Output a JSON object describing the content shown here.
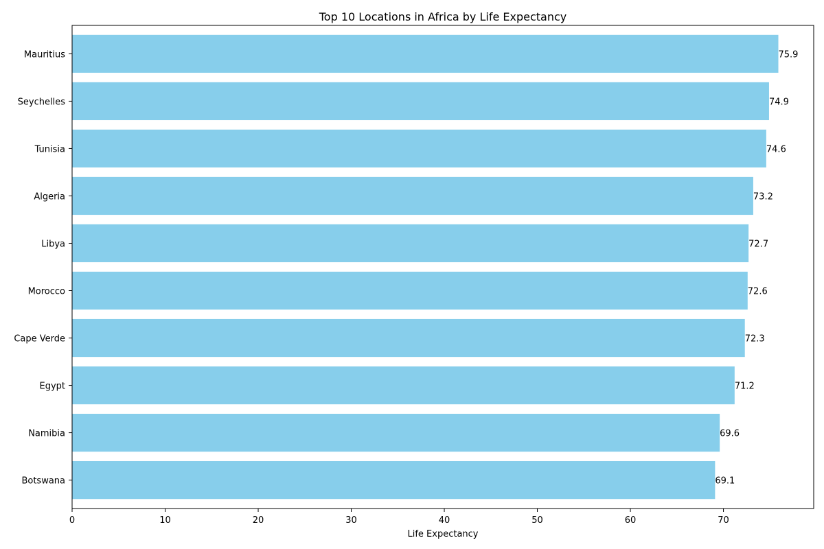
{
  "chart_data": {
    "type": "bar",
    "orientation": "horizontal",
    "title": "Top 10 Locations in Africa by Life Expectancy",
    "xlabel": "Life Expectancy",
    "ylabel": "",
    "categories": [
      "Mauritius",
      "Seychelles",
      "Tunisia",
      "Algeria",
      "Libya",
      "Morocco",
      "Cape Verde",
      "Egypt",
      "Namibia",
      "Botswana"
    ],
    "values": [
      75.9,
      74.9,
      74.6,
      73.2,
      72.7,
      72.6,
      72.3,
      71.2,
      69.6,
      69.1
    ],
    "value_labels": [
      "75.9",
      "74.9",
      "74.6",
      "73.2",
      "72.7",
      "72.6",
      "72.3",
      "71.2",
      "69.6",
      "69.1"
    ],
    "xlim": [
      0,
      79.7
    ],
    "xticks": [
      0,
      10,
      20,
      30,
      40,
      50,
      60,
      70
    ],
    "xtick_labels": [
      "0",
      "10",
      "20",
      "30",
      "40",
      "50",
      "60",
      "70"
    ],
    "grid": false,
    "legend": "none",
    "bar_color": "#87CEEB"
  }
}
